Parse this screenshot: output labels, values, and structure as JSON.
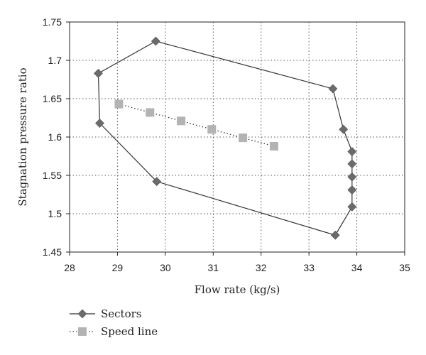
{
  "chart_data": {
    "type": "scatter",
    "title": "",
    "xlabel": "Flow rate (kg/s)",
    "ylabel": "Stagnation pressure ratio",
    "xlim": [
      28,
      35
    ],
    "ylim": [
      1.45,
      1.75
    ],
    "x_ticks": [
      28,
      29,
      30,
      31,
      32,
      33,
      34,
      35
    ],
    "y_ticks": [
      1.45,
      1.5,
      1.55,
      1.6,
      1.65,
      1.7,
      1.75
    ],
    "x_tick_labels": [
      "28",
      "29",
      "30",
      "31",
      "32",
      "33",
      "34",
      "35"
    ],
    "y_tick_labels": [
      "1.45",
      "1.5",
      "1.55",
      "1.6",
      "1.65",
      "1.7",
      "1.75"
    ],
    "grid": true,
    "legend_position": "bottom-left",
    "series": [
      {
        "name": "Sectors",
        "line": "solid",
        "marker": "diamond",
        "color": "#333333",
        "marker_color": "#6b6b6b",
        "closed": true,
        "points": [
          {
            "x": 29.8,
            "y": 1.725
          },
          {
            "x": 33.5,
            "y": 1.663
          },
          {
            "x": 33.72,
            "y": 1.61
          },
          {
            "x": 33.9,
            "y": 1.581
          },
          {
            "x": 33.9,
            "y": 1.565
          },
          {
            "x": 33.9,
            "y": 1.548
          },
          {
            "x": 33.9,
            "y": 1.531
          },
          {
            "x": 33.9,
            "y": 1.509
          },
          {
            "x": 33.55,
            "y": 1.472
          },
          {
            "x": 29.82,
            "y": 1.542
          },
          {
            "x": 28.63,
            "y": 1.618
          },
          {
            "x": 28.6,
            "y": 1.683
          }
        ]
      },
      {
        "name": "Speed line",
        "line": "dotted",
        "marker": "square",
        "color": "#333333",
        "marker_color": "#b3b3b3",
        "closed": false,
        "points": [
          {
            "x": 29.03,
            "y": 1.643
          },
          {
            "x": 29.68,
            "y": 1.632
          },
          {
            "x": 30.33,
            "y": 1.621
          },
          {
            "x": 30.97,
            "y": 1.61
          },
          {
            "x": 31.62,
            "y": 1.599
          },
          {
            "x": 32.27,
            "y": 1.588
          }
        ]
      }
    ]
  }
}
